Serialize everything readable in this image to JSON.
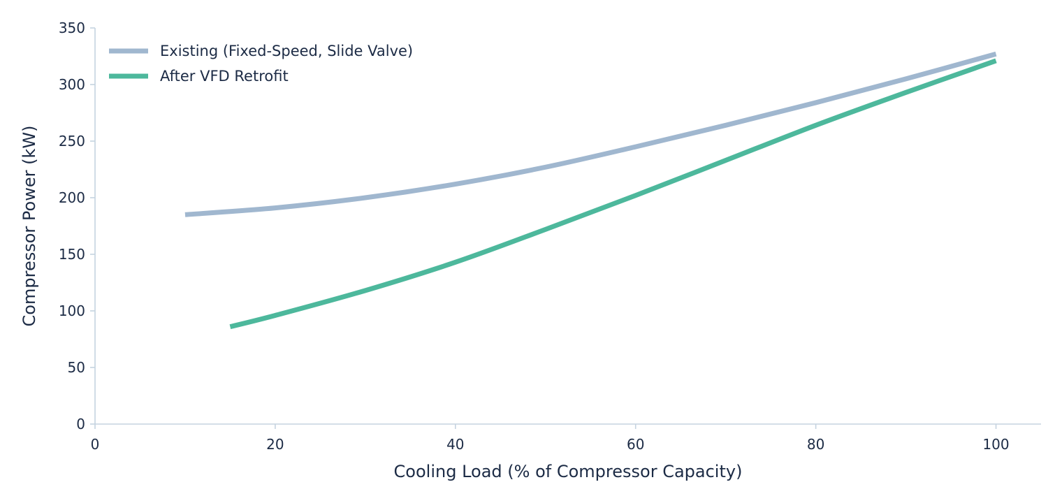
{
  "chart_data": {
    "type": "line",
    "xlabel": "Cooling Load (% of Compressor Capacity)",
    "ylabel": "Compressor Power (kW)",
    "xlim": [
      0,
      105
    ],
    "ylim": [
      0,
      350
    ],
    "xticks": [
      0,
      20,
      40,
      60,
      80,
      100
    ],
    "yticks": [
      0,
      50,
      100,
      150,
      200,
      250,
      300,
      350
    ],
    "grid": false,
    "legend_position": "top-left",
    "series": [
      {
        "name": "Existing (Fixed-Speed, Slide Valve)",
        "color": "#a0b7cf",
        "x": [
          10,
          20,
          30,
          40,
          50,
          60,
          70,
          80,
          90,
          100
        ],
        "y": [
          185,
          191,
          200,
          212,
          227,
          245,
          264,
          284,
          305,
          327
        ]
      },
      {
        "name": "After VFD Retrofit",
        "color": "#4db89c",
        "x": [
          15,
          20,
          30,
          40,
          50,
          60,
          70,
          80,
          90,
          100
        ],
        "y": [
          86,
          96,
          118,
          143,
          172,
          202,
          233,
          264,
          293,
          321
        ]
      }
    ]
  }
}
